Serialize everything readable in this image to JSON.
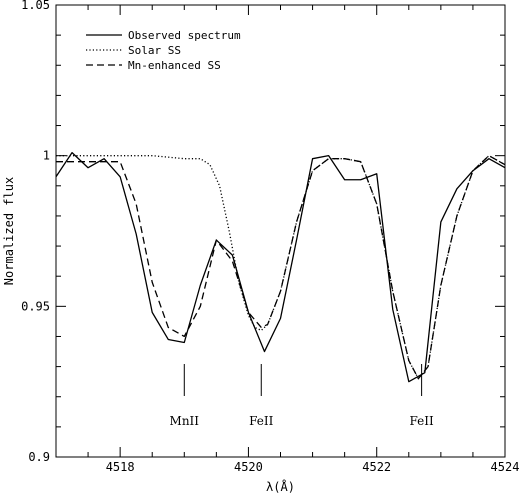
{
  "chart_data": {
    "type": "line",
    "title": "",
    "xlabel": "λ(Å)",
    "ylabel": "Normalized flux",
    "xlim": [
      4517,
      4524
    ],
    "ylim": [
      0.9,
      1.05
    ],
    "grid": false,
    "legend_position": "top-left",
    "x_ticks": [
      4518,
      4520,
      4522,
      4524
    ],
    "y_ticks": [
      0.9,
      0.95,
      1,
      1.05
    ],
    "x_tick_labels": [
      "4518",
      "4520",
      "4522",
      "4524"
    ],
    "y_tick_labels": [
      "0.9",
      "0.95",
      "1",
      "1.05"
    ],
    "series": [
      {
        "name": "Observed spectrum",
        "style": "solid",
        "x": [
          4517.0,
          4517.25,
          4517.5,
          4517.75,
          4518.0,
          4518.25,
          4518.5,
          4518.75,
          4519.0,
          4519.25,
          4519.5,
          4519.75,
          4520.0,
          4520.25,
          4520.5,
          4520.75,
          4521.0,
          4521.25,
          4521.5,
          4521.75,
          4522.0,
          4522.25,
          4522.5,
          4522.75,
          4523.0,
          4523.25,
          4523.5,
          4523.75,
          4524.0
        ],
        "values": [
          0.993,
          1.001,
          0.996,
          0.999,
          0.993,
          0.974,
          0.948,
          0.939,
          0.938,
          0.957,
          0.972,
          0.967,
          0.948,
          0.935,
          0.946,
          0.972,
          0.999,
          1.0,
          0.992,
          0.992,
          0.994,
          0.949,
          0.925,
          0.928,
          0.978,
          0.989,
          0.995,
          0.999,
          0.996
        ]
      },
      {
        "name": "Solar SS",
        "style": "dotted",
        "x": [
          4517.0,
          4517.5,
          4518.0,
          4518.5,
          4519.0,
          4519.25,
          4519.4,
          4519.55,
          4519.7,
          4519.85,
          4520.0,
          4520.1,
          4520.2,
          4520.3,
          4520.5,
          4520.75,
          4521.0,
          4521.25,
          4521.5,
          4521.75,
          4522.0,
          4522.25,
          4522.5,
          4522.65,
          4522.8,
          4523.0,
          4523.25,
          4523.5,
          4523.75,
          4524.0
        ],
        "values": [
          1.0,
          1.0,
          1.0,
          1.0,
          0.999,
          0.999,
          0.997,
          0.99,
          0.975,
          0.958,
          0.947,
          0.943,
          0.942,
          0.944,
          0.955,
          0.978,
          0.995,
          0.999,
          0.999,
          0.998,
          0.984,
          0.955,
          0.932,
          0.926,
          0.93,
          0.957,
          0.98,
          0.995,
          1.0,
          0.997
        ]
      },
      {
        "name": "Mn-enhanced SS",
        "style": "dashed",
        "x": [
          4517.0,
          4517.5,
          4518.0,
          4518.25,
          4518.5,
          4518.75,
          4519.0,
          4519.25,
          4519.5,
          4519.75,
          4520.0,
          4520.2,
          4520.3,
          4520.5,
          4520.75,
          4521.0,
          4521.25,
          4521.5,
          4521.75,
          4522.0,
          4522.25,
          4522.5,
          4522.65,
          4522.8,
          4523.0,
          4523.25,
          4523.5,
          4523.75,
          4524.0
        ],
        "values": [
          0.998,
          0.998,
          0.998,
          0.984,
          0.958,
          0.943,
          0.94,
          0.95,
          0.972,
          0.965,
          0.948,
          0.943,
          0.944,
          0.955,
          0.978,
          0.995,
          0.999,
          0.999,
          0.998,
          0.984,
          0.955,
          0.932,
          0.926,
          0.93,
          0.957,
          0.98,
          0.995,
          1.0,
          0.997
        ]
      }
    ],
    "annotations": [
      {
        "text": "MnII",
        "x": 4519.0
      },
      {
        "text": "FeII",
        "x": 4520.2
      },
      {
        "text": "FeII",
        "x": 4522.7
      }
    ]
  }
}
